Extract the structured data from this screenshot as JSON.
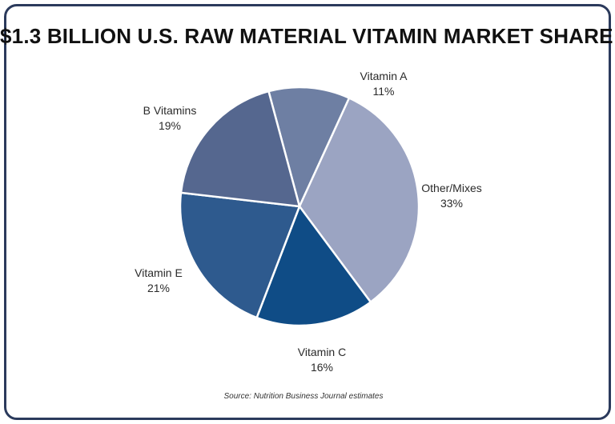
{
  "chart_data": {
    "type": "pie",
    "title": "$1.3 BILLION U.S. RAW MATERIAL VITAMIN MARKET SHARE",
    "source": "Source: Nutrition Business Journal estimates",
    "slices": [
      {
        "label": "Vitamin A",
        "value": 11,
        "value_label": "11%",
        "color": "#6e7fa3"
      },
      {
        "label": "Other/Mixes",
        "value": 33,
        "value_label": "33%",
        "color": "#9ba4c2"
      },
      {
        "label": "Vitamin C",
        "value": 16,
        "value_label": "16%",
        "color": "#0f4c86"
      },
      {
        "label": "Vitamin E",
        "value": 21,
        "value_label": "21%",
        "color": "#2e5a8e"
      },
      {
        "label": "B Vitamins",
        "value": 19,
        "value_label": "19%",
        "color": "#55678f"
      }
    ]
  }
}
